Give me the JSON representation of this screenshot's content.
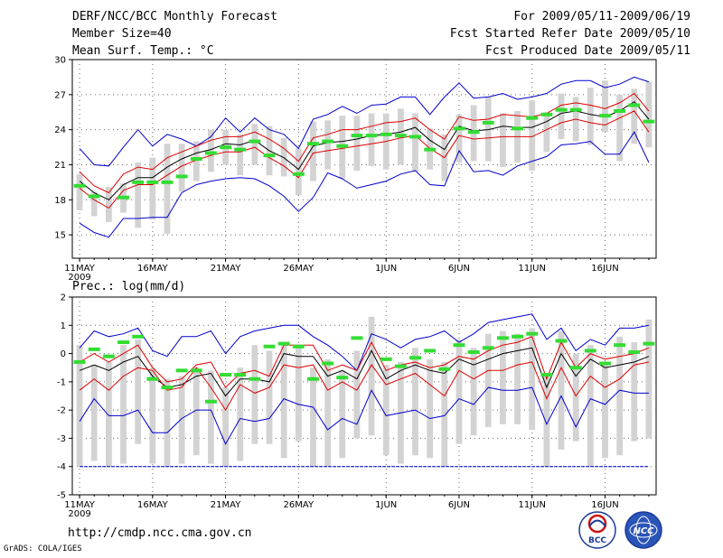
{
  "header": {
    "title": "DERF/NCC/BCC Monthly Forecast",
    "member_size": "Member Size=40",
    "variable": "Mean Surf. Temp.: °C",
    "period": "For 2009/05/11-2009/06/19",
    "refer_date": "Fcst Started Refer Date 2009/05/10",
    "produced_date": "Fcst Produced Date 2009/05/11"
  },
  "footer": {
    "url": "http://cmdp.ncc.cma.gov.cn",
    "credit": "GrADS: COLA/IGES",
    "logo_bcc_text": "BCC",
    "logo_ncc_text": "NCC"
  },
  "colors": {
    "envelope": "#0000cc",
    "spread": "#dd0000",
    "mean": "#000000",
    "box": "#d3d3d3",
    "member": "#33dd33",
    "floor": "#0000cc"
  },
  "chart_data": [
    {
      "type": "line",
      "title": "Mean Surf. Temp.: °C",
      "ylim": [
        13,
        30
      ],
      "yticks": [
        15,
        18,
        21,
        24,
        27,
        30
      ],
      "x_day_range": [
        1,
        40
      ],
      "xticks": [
        {
          "day": 1,
          "label": "11MAY",
          "sublabel": "2009"
        },
        {
          "day": 6,
          "label": "16MAY"
        },
        {
          "day": 11,
          "label": "21MAY"
        },
        {
          "day": 16,
          "label": "26MAY"
        },
        {
          "day": 22,
          "label": "1JUN"
        },
        {
          "day": 27,
          "label": "6JUN"
        },
        {
          "day": 32,
          "label": "11JUN"
        },
        {
          "day": 37,
          "label": "16JUN"
        }
      ],
      "series": [
        {
          "name": "max",
          "values": [
            22.4,
            21.0,
            20.9,
            22.5,
            24.0,
            22.6,
            23.6,
            23.2,
            22.6,
            23.4,
            25.0,
            23.8,
            25.0,
            24.0,
            23.6,
            22.4,
            24.9,
            25.3,
            26.0,
            25.4,
            26.1,
            26.2,
            26.8,
            26.8,
            25.3,
            26.8,
            28.0,
            26.7,
            26.8,
            27.1,
            26.6,
            26.8,
            27.1,
            27.9,
            28.2,
            28.2,
            27.6,
            27.9,
            28.5,
            28.1
          ]
        },
        {
          "name": "upper",
          "values": [
            20.4,
            19.2,
            18.6,
            20.2,
            20.8,
            20.6,
            21.6,
            22.1,
            22.6,
            23.1,
            23.4,
            23.4,
            23.8,
            23.2,
            22.4,
            21.3,
            23.3,
            23.6,
            24.0,
            24.0,
            24.3,
            24.6,
            24.7,
            25.0,
            24.0,
            23.2,
            25.1,
            24.8,
            24.9,
            25.3,
            25.2,
            25.1,
            25.4,
            26.1,
            26.3,
            26.1,
            25.8,
            26.3,
            27.1,
            25.6
          ]
        },
        {
          "name": "mean",
          "values": [
            19.6,
            18.6,
            18.0,
            19.3,
            19.9,
            19.9,
            20.8,
            21.5,
            22.0,
            22.3,
            22.8,
            22.7,
            23.1,
            22.2,
            21.6,
            20.6,
            22.6,
            22.9,
            23.0,
            23.2,
            23.5,
            23.6,
            23.8,
            24.2,
            23.1,
            22.3,
            24.3,
            23.9,
            24.0,
            24.3,
            24.2,
            24.2,
            24.7,
            25.4,
            25.6,
            25.3,
            25.1,
            25.6,
            26.4,
            24.9
          ]
        },
        {
          "name": "lower",
          "values": [
            19.0,
            18.0,
            17.3,
            18.8,
            19.3,
            19.3,
            20.1,
            20.9,
            21.4,
            21.8,
            22.1,
            22.1,
            22.5,
            21.6,
            20.9,
            19.9,
            22.0,
            22.2,
            22.4,
            22.6,
            22.8,
            23.0,
            23.3,
            23.5,
            22.4,
            21.6,
            23.5,
            23.2,
            23.3,
            23.4,
            23.4,
            23.4,
            24.0,
            24.6,
            24.9,
            24.6,
            24.4,
            25.0,
            25.6,
            23.8
          ]
        },
        {
          "name": "min",
          "values": [
            16.0,
            15.2,
            14.8,
            16.4,
            16.4,
            16.5,
            16.5,
            18.6,
            19.3,
            19.6,
            19.8,
            19.9,
            19.8,
            19.2,
            18.3,
            17.0,
            18.2,
            20.3,
            19.8,
            19.0,
            19.3,
            19.6,
            20.2,
            20.5,
            19.3,
            19.2,
            22.2,
            20.4,
            20.5,
            20.1,
            20.9,
            21.3,
            21.7,
            22.7,
            22.8,
            23.0,
            21.9,
            21.9,
            23.8,
            21.2
          ]
        }
      ],
      "box_ranges": [
        [
          17.1,
          20.2
        ],
        [
          16.6,
          18.7
        ],
        [
          16.1,
          19.1
        ],
        [
          16.9,
          19.4
        ],
        [
          15.6,
          21.2
        ],
        [
          16.3,
          21.6
        ],
        [
          15.1,
          22.8
        ],
        [
          18.7,
          22.8
        ],
        [
          19.6,
          23.0
        ],
        [
          20.4,
          24.0
        ],
        [
          21.0,
          24.0
        ],
        [
          20.1,
          23.6
        ],
        [
          21.0,
          24.5
        ],
        [
          20.1,
          24.3
        ],
        [
          20.0,
          23.3
        ],
        [
          18.4,
          22.4
        ],
        [
          19.6,
          24.7
        ],
        [
          20.6,
          24.8
        ],
        [
          19.8,
          25.2
        ],
        [
          20.5,
          25.2
        ],
        [
          20.9,
          25.4
        ],
        [
          20.6,
          25.4
        ],
        [
          21.0,
          25.8
        ],
        [
          20.4,
          25.4
        ],
        [
          20.6,
          24.1
        ],
        [
          19.6,
          23.6
        ],
        [
          21.2,
          25.3
        ],
        [
          21.3,
          26.1
        ],
        [
          21.3,
          26.8
        ],
        [
          20.8,
          25.4
        ],
        [
          21.2,
          25.6
        ],
        [
          20.5,
          26.5
        ],
        [
          22.1,
          25.5
        ],
        [
          23.2,
          27.1
        ],
        [
          23.0,
          26.8
        ],
        [
          22.7,
          27.6
        ],
        [
          23.8,
          28.2
        ],
        [
          21.3,
          27.0
        ],
        [
          22.8,
          27.5
        ],
        [
          22.5,
          28.1
        ]
      ],
      "member_values": [
        19.2,
        18.3,
        null,
        18.2,
        19.5,
        19.5,
        19.5,
        20.0,
        21.5,
        22.0,
        22.5,
        22.3,
        23.0,
        21.8,
        null,
        20.2,
        22.8,
        23.0,
        22.6,
        23.5,
        23.5,
        23.6,
        23.5,
        23.4,
        22.3,
        null,
        24.1,
        23.8,
        24.6,
        null,
        24.1,
        25.0,
        25.3,
        25.7,
        25.7,
        null,
        25.2,
        25.6,
        26.1,
        24.7
      ]
    },
    {
      "type": "line",
      "title": "Prec.: log(mm/d)",
      "ylim": [
        -5,
        2
      ],
      "yticks": [
        -5,
        -4,
        -3,
        -2,
        -1,
        0,
        1,
        2
      ],
      "x_day_range": [
        1,
        40
      ],
      "xticks": [
        {
          "day": 1,
          "label": "11MAY",
          "sublabel": "2009"
        },
        {
          "day": 6,
          "label": "16MAY"
        },
        {
          "day": 11,
          "label": "21MAY"
        },
        {
          "day": 16,
          "label": "26MAY"
        },
        {
          "day": 22,
          "label": "1JUN"
        },
        {
          "day": 27,
          "label": "6JUN"
        },
        {
          "day": 32,
          "label": "11JUN"
        },
        {
          "day": 37,
          "label": "16JUN"
        }
      ],
      "series": [
        {
          "name": "max",
          "values": [
            0.2,
            0.8,
            0.6,
            0.7,
            0.9,
            0.1,
            -0.1,
            0.6,
            0.6,
            0.8,
            0.0,
            0.6,
            0.8,
            0.9,
            1.0,
            1.0,
            0.6,
            0.3,
            -0.1,
            -0.6,
            0.7,
            0.5,
            0.2,
            0.5,
            0.6,
            0.8,
            0.4,
            0.7,
            1.1,
            1.2,
            1.3,
            1.4,
            0.5,
            0.9,
            0.1,
            0.5,
            0.3,
            0.9,
            0.9,
            1.0
          ]
        },
        {
          "name": "upper",
          "values": [
            -0.3,
            0.0,
            -0.3,
            0.0,
            0.3,
            -0.5,
            -1.0,
            -0.9,
            -0.4,
            -0.3,
            -1.2,
            -0.7,
            -0.6,
            -0.8,
            0.3,
            0.3,
            0.3,
            -0.6,
            -0.4,
            -0.6,
            0.4,
            -0.6,
            -0.4,
            -0.3,
            -0.5,
            -0.4,
            -0.1,
            -0.2,
            0.1,
            0.3,
            0.4,
            0.6,
            -0.9,
            0.4,
            -0.5,
            0.0,
            -0.2,
            -0.1,
            0.0,
            0.2
          ]
        },
        {
          "name": "mean",
          "values": [
            -0.6,
            -0.4,
            -0.6,
            -0.3,
            -0.1,
            -0.8,
            -1.2,
            -1.1,
            -0.8,
            -0.7,
            -1.5,
            -0.9,
            -0.9,
            -1.0,
            0.0,
            -0.1,
            -0.1,
            -0.8,
            -0.6,
            -0.9,
            0.1,
            -0.9,
            -0.6,
            -0.4,
            -0.6,
            -0.7,
            -0.2,
            -0.4,
            -0.2,
            0.0,
            0.1,
            0.2,
            -1.2,
            0.0,
            -0.8,
            -0.2,
            -0.5,
            -0.4,
            -0.3,
            -0.1
          ]
        },
        {
          "name": "lower",
          "values": [
            -1.3,
            -0.9,
            -1.3,
            -0.8,
            -0.5,
            -0.6,
            -1.3,
            -1.2,
            -0.5,
            -1.2,
            -2.0,
            -1.1,
            -1.4,
            -1.2,
            -0.4,
            -0.5,
            -0.4,
            -1.3,
            -1.0,
            -1.3,
            -0.4,
            -1.1,
            -0.9,
            -0.7,
            -1.1,
            -1.5,
            -0.6,
            -0.9,
            -0.6,
            -0.6,
            -0.4,
            -0.3,
            -1.6,
            -0.5,
            -1.5,
            -0.8,
            -1.2,
            -0.9,
            -0.4,
            -0.3
          ]
        },
        {
          "name": "min",
          "values": [
            -2.4,
            -1.6,
            -2.2,
            -2.2,
            -2.0,
            -2.8,
            -2.8,
            -2.3,
            -2.0,
            -2.0,
            -3.2,
            -2.3,
            -2.4,
            -2.3,
            -1.6,
            -1.8,
            -1.9,
            -2.7,
            -2.3,
            -2.5,
            -1.3,
            -2.2,
            -2.1,
            -2.0,
            -2.3,
            -2.2,
            -1.6,
            -1.8,
            -1.2,
            -1.3,
            -1.3,
            -1.2,
            -2.5,
            -1.5,
            -2.6,
            -1.6,
            -1.8,
            -1.3,
            -1.4,
            -1.4
          ]
        }
      ],
      "box_ranges": [
        [
          -4.0,
          0.3
        ],
        [
          -3.8,
          -0.4
        ],
        [
          -4.0,
          -0.3
        ],
        [
          -3.9,
          0.3
        ],
        [
          -3.2,
          0.5
        ],
        [
          -3.9,
          -0.5
        ],
        [
          -4.0,
          -0.9
        ],
        [
          -3.9,
          -0.8
        ],
        [
          -3.6,
          -0.5
        ],
        [
          -3.9,
          -0.6
        ],
        [
          -4.0,
          -1.2
        ],
        [
          -3.8,
          -0.5
        ],
        [
          -3.2,
          0.3
        ],
        [
          -3.2,
          0.1
        ],
        [
          -3.7,
          0.3
        ],
        [
          -3.1,
          0.3
        ],
        [
          -4.0,
          -0.5
        ],
        [
          -4.0,
          -0.2
        ],
        [
          -3.7,
          -0.6
        ],
        [
          -3.0,
          0.1
        ],
        [
          -2.9,
          1.3
        ],
        [
          -3.6,
          -0.4
        ],
        [
          -3.9,
          -0.3
        ],
        [
          -3.6,
          0.2
        ],
        [
          -3.7,
          -0.2
        ],
        [
          -4.0,
          -0.3
        ],
        [
          -3.2,
          0.5
        ],
        [
          -2.9,
          0.2
        ],
        [
          -2.6,
          0.7
        ],
        [
          -2.5,
          0.8
        ],
        [
          -2.5,
          0.7
        ],
        [
          -2.7,
          0.9
        ],
        [
          -4.0,
          -0.8
        ],
        [
          -3.4,
          0.8
        ],
        [
          -3.1,
          0.0
        ],
        [
          -4.0,
          0.3
        ],
        [
          -3.7,
          -0.3
        ],
        [
          -3.6,
          0.6
        ],
        [
          -3.1,
          0.4
        ],
        [
          -3.0,
          1.2
        ]
      ],
      "member_values": [
        -0.3,
        0.15,
        -0.1,
        0.4,
        0.6,
        -0.9,
        -1.2,
        -0.6,
        -0.6,
        -1.7,
        -0.75,
        -0.75,
        -0.9,
        0.25,
        0.35,
        0.25,
        -0.9,
        -0.35,
        -0.85,
        0.55,
        null,
        -0.2,
        -0.45,
        -0.15,
        0.1,
        -0.55,
        0.3,
        0.05,
        0.2,
        0.55,
        0.6,
        0.7,
        -0.75,
        0.45,
        -0.5,
        0.1,
        -0.35,
        0.3,
        0.05,
        0.35
      ],
      "floor_value": -4
    }
  ]
}
